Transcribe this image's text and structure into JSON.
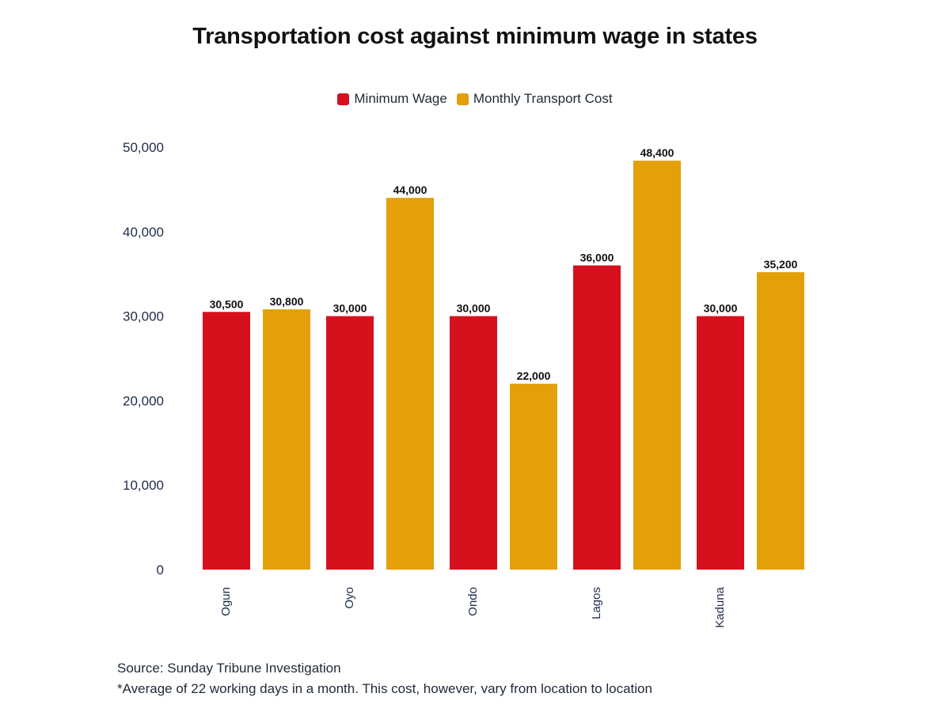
{
  "chart_data": {
    "type": "bar",
    "title": "Transportation cost against minimum wage in states",
    "categories": [
      "Ogun",
      "Oyo",
      "Ondo",
      "Lagos",
      "Kaduna"
    ],
    "series": [
      {
        "name": "Minimum Wage",
        "color": "#d7101e",
        "values": [
          30500,
          30000,
          30000,
          36000,
          30000
        ]
      },
      {
        "name": "Monthly Transport Cost",
        "color": "#e3a008",
        "values": [
          30800,
          44000,
          22000,
          48400,
          35200
        ]
      }
    ],
    "ylim": [
      0,
      50000
    ],
    "yticks": [
      "0",
      "10,000",
      "20,000",
      "30,000",
      "40,000",
      "50,000"
    ],
    "legend_position": "top-center",
    "grid": false,
    "source": "Source: Sunday Tribune Investigation",
    "note": "*Average of 22 working days in a month. This cost, however, vary from location to location"
  }
}
